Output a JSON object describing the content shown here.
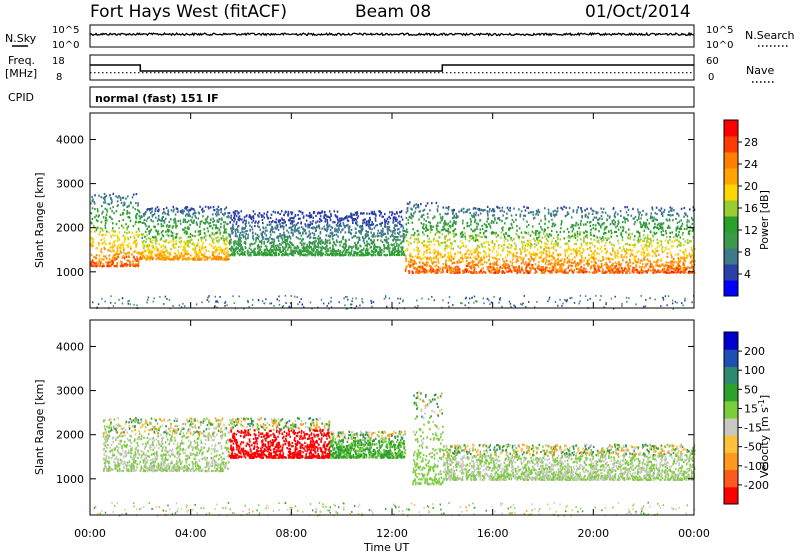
{
  "header": {
    "site": "Fort Hays West (fitACF)",
    "beam": "Beam 08",
    "date": "01/Oct/2014"
  },
  "left_labels": {
    "nsky": "N.Sky",
    "freq": "Freq.",
    "freq_unit": "[MHz]",
    "cpid": "CPID"
  },
  "right_labels": {
    "nsearch": "N.Search",
    "nave": "Nave"
  },
  "mode_text": "normal (fast) 151 IF",
  "noise_axis": {
    "top": "10^5",
    "bottom": "10^0"
  },
  "noise_axis_right": {
    "top": "10^5",
    "bottom": "10^0"
  },
  "freq_axis": {
    "top": "18",
    "bottom": "8"
  },
  "nave_axis": {
    "top": "60",
    "bottom": "0"
  },
  "xaxis": {
    "label": "Time UT",
    "ticks": [
      "00:00",
      "04:00",
      "08:00",
      "12:00",
      "16:00",
      "20:00",
      "00:00"
    ]
  },
  "power_panel": {
    "ylabel": "Slant Range [km]",
    "yticks": [
      "1000",
      "2000",
      "3000",
      "4000"
    ],
    "colorbar_label": "Power [dB]",
    "colorbar_ticks": [
      "4",
      "8",
      "12",
      "16",
      "20",
      "24",
      "28"
    ]
  },
  "velocity_panel": {
    "ylabel": "Slant Range [km]",
    "yticks": [
      "1000",
      "2000",
      "3000",
      "4000"
    ],
    "colorbar_label": "Velocity [m s",
    "colorbar_unit_exp": "-1",
    "colorbar_ticks": [
      "200",
      "100",
      "50",
      "15",
      "-15",
      "-50",
      "-100",
      "-200"
    ]
  },
  "colors": {
    "power_scale": [
      "#0000ff",
      "#2a3fa8",
      "#3e7a8a",
      "#3a9a4a",
      "#2aa02a",
      "#9acd32",
      "#ffd700",
      "#ffa500",
      "#ff7f00",
      "#ff3c00",
      "#ff0000"
    ],
    "velocity_scale": [
      "#0000cc",
      "#1f4fb4",
      "#2e8a6e",
      "#2ea02e",
      "#7ccd3c",
      "#c8c8c0",
      "#ffc03c",
      "#ff9a1e",
      "#ff5a1e",
      "#ff0000"
    ]
  },
  "chart_data": [
    {
      "type": "line",
      "title": "N.Sky / N.Search",
      "x": [
        0,
        4,
        8,
        12,
        16,
        20,
        24
      ],
      "series": [
        {
          "name": "N.Sky",
          "values": [
            1000,
            1000,
            1000,
            1000,
            800,
            1000,
            1000
          ]
        },
        {
          "name": "N.Search",
          "values": [
            1000,
            1000,
            1000,
            1000,
            800,
            1000,
            1000
          ]
        }
      ],
      "xlim": [
        0,
        24
      ],
      "ylim_log": [
        1,
        100000
      ]
    },
    {
      "type": "line",
      "title": "Freq. / Nave",
      "x": [
        0,
        2,
        2,
        14,
        14,
        24
      ],
      "series": [
        {
          "name": "Freq.",
          "values": [
            14.5,
            14.5,
            11.5,
            11.5,
            14.5,
            14.5
          ]
        },
        {
          "name": "Nave",
          "values": [
            16,
            16,
            16,
            16,
            16,
            16
          ]
        }
      ],
      "xlim": [
        0,
        24
      ],
      "ylim": [
        8,
        18
      ]
    },
    {
      "type": "heatmap",
      "title": "Power",
      "xlabel": "Time UT",
      "ylabel": "Slant Range [km]",
      "xlim": [
        0,
        24
      ],
      "ylim": [
        180,
        4600
      ],
      "colorbar_range": [
        0,
        30
      ],
      "bands": [
        {
          "t0": 0,
          "t1": 2.0,
          "r_bottom": 1150,
          "r_top": 2800,
          "peak_power": 28
        },
        {
          "t0": 2.0,
          "t1": 5.5,
          "r_bottom": 1300,
          "r_top": 2500,
          "peak_power": 24
        },
        {
          "t0": 5.5,
          "t1": 12.5,
          "r_bottom": 1400,
          "r_top": 2400,
          "peak_power": 12
        },
        {
          "t0": 12.5,
          "t1": 14.0,
          "r_bottom": 1000,
          "r_top": 2600,
          "peak_power": 28
        },
        {
          "t0": 14.0,
          "t1": 24.0,
          "r_bottom": 1000,
          "r_top": 2500,
          "peak_power": 28
        }
      ]
    },
    {
      "type": "heatmap",
      "title": "Velocity",
      "xlabel": "Time UT",
      "ylabel": "Slant Range [km]",
      "xlim": [
        0,
        24
      ],
      "ylim": [
        180,
        4600
      ],
      "colorbar_range": [
        -200,
        200
      ],
      "bands": [
        {
          "t0": 0.5,
          "t1": 5.5,
          "r_bottom": 1200,
          "r_top": 2400,
          "velocity": 0
        },
        {
          "t0": 5.5,
          "t1": 9.5,
          "r_bottom": 1500,
          "r_top": 2400,
          "velocity": -200
        },
        {
          "t0": 9.5,
          "t1": 12.5,
          "r_bottom": 1500,
          "r_top": 2100,
          "velocity": 50
        },
        {
          "t0": 12.8,
          "t1": 14.0,
          "r_bottom": 900,
          "r_top": 3000,
          "velocity": 15
        },
        {
          "t0": 14.0,
          "t1": 24.0,
          "r_bottom": 1000,
          "r_top": 1800,
          "velocity": 0
        }
      ]
    }
  ]
}
